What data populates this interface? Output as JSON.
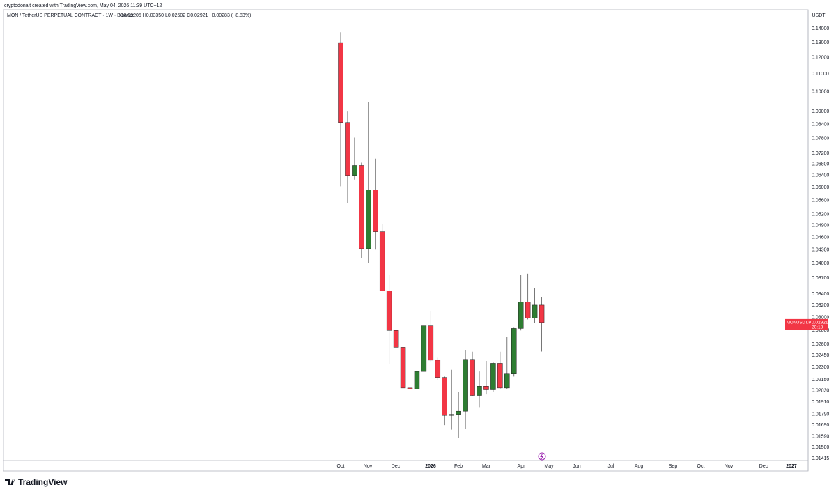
{
  "credit": "cryptodonalt created with TradingView.com, May 04, 2026 11:39 UTC+12",
  "brand": "TradingView",
  "chart_data": {
    "type": "candlestick",
    "title": "MON / TetherUS PERPETUAL CONTRACT · 1W · Binance",
    "ohlc_text": "O0.03205  H0.03350  L0.02502  C0.02921  −0.00283 (−8.83%)",
    "y_unit": "USDT",
    "log_scale": true,
    "grid": false,
    "up_color": "#2e7d32",
    "down_color": "#f23645",
    "ylim": [
      0.01399,
      0.1543
    ],
    "yticks": [
      {
        "value": 0.14,
        "label": "0.14000"
      },
      {
        "value": 0.13,
        "label": "0.13000"
      },
      {
        "value": 0.12,
        "label": "0.12000"
      },
      {
        "value": 0.11,
        "label": "0.11000"
      },
      {
        "value": 0.1,
        "label": "0.10000"
      },
      {
        "value": 0.09,
        "label": "0.09000"
      },
      {
        "value": 0.084,
        "label": "0.08400"
      },
      {
        "value": 0.078,
        "label": "0.07800"
      },
      {
        "value": 0.072,
        "label": "0.07200"
      },
      {
        "value": 0.068,
        "label": "0.06800"
      },
      {
        "value": 0.064,
        "label": "0.06400"
      },
      {
        "value": 0.06,
        "label": "0.06000"
      },
      {
        "value": 0.056,
        "label": "0.05600"
      },
      {
        "value": 0.052,
        "label": "0.05200"
      },
      {
        "value": 0.049,
        "label": "0.04900"
      },
      {
        "value": 0.046,
        "label": "0.04600"
      },
      {
        "value": 0.043,
        "label": "0.04300"
      },
      {
        "value": 0.04,
        "label": "0.04000"
      },
      {
        "value": 0.037,
        "label": "0.03700"
      },
      {
        "value": 0.034,
        "label": "0.03400"
      },
      {
        "value": 0.032,
        "label": "0.03200"
      },
      {
        "value": 0.03,
        "label": "0.03000"
      },
      {
        "value": 0.028,
        "label": "0.02800"
      },
      {
        "value": 0.026,
        "label": "0.02600"
      },
      {
        "value": 0.0245,
        "label": "0.02450"
      },
      {
        "value": 0.023,
        "label": "0.02300"
      },
      {
        "value": 0.0215,
        "label": "0.02150"
      },
      {
        "value": 0.0203,
        "label": "0.02030"
      },
      {
        "value": 0.0191,
        "label": "0.01910"
      },
      {
        "value": 0.0179,
        "label": "0.01790"
      },
      {
        "value": 0.0169,
        "label": "0.01690"
      },
      {
        "value": 0.0159,
        "label": "0.01590"
      },
      {
        "value": 0.015,
        "label": "0.01500"
      },
      {
        "value": 0.01415,
        "label": "0.01415"
      }
    ],
    "x_labels": [
      "Oct",
      "Nov",
      "Dec",
      "2026",
      "Feb",
      "Mar",
      "Apr",
      "May",
      "Jun",
      "Jul",
      "Aug",
      "Sep",
      "Oct",
      "Nov",
      "Dec",
      "2027"
    ],
    "series": {
      "open": [
        0.13,
        0.0849,
        0.064,
        0.0675,
        0.0433,
        0.0593,
        0.0474,
        0.0346,
        0.028,
        0.0256,
        0.0206,
        0.0205,
        0.0225,
        0.0287,
        0.0239,
        0.0218,
        0.0178,
        0.0179,
        0.0182,
        0.024,
        0.0198,
        0.0208,
        0.0204,
        0.0235,
        0.0206,
        0.0222,
        0.0283,
        0.0326,
        0.0299,
        0.03205
      ],
      "high": [
        0.1374,
        0.09,
        0.0783,
        0.0685,
        0.0947,
        0.07,
        0.0494,
        0.0376,
        0.0333,
        0.0297,
        0.0208,
        0.0254,
        0.0298,
        0.0311,
        0.0242,
        0.0219,
        0.0227,
        0.0202,
        0.0252,
        0.025,
        0.0225,
        0.0238,
        0.0237,
        0.025,
        0.0271,
        0.0284,
        0.0376,
        0.0379,
        0.0351,
        0.0335
      ],
      "low": [
        0.0604,
        0.0552,
        0.0626,
        0.0412,
        0.0401,
        0.0431,
        0.0345,
        0.0234,
        0.0236,
        0.0204,
        0.0173,
        0.0185,
        0.0224,
        0.0237,
        0.0215,
        0.0169,
        0.0165,
        0.0158,
        0.0166,
        0.0197,
        0.0186,
        0.0199,
        0.0202,
        0.0205,
        0.0205,
        0.0219,
        0.028,
        0.0297,
        0.0292,
        0.02502
      ],
      "close": [
        0.0849,
        0.064,
        0.0675,
        0.0433,
        0.0593,
        0.0474,
        0.0346,
        0.028,
        0.0256,
        0.0206,
        0.0205,
        0.0225,
        0.0287,
        0.0239,
        0.0218,
        0.0178,
        0.0179,
        0.0182,
        0.024,
        0.0198,
        0.0208,
        0.0204,
        0.0235,
        0.0206,
        0.0222,
        0.0283,
        0.0326,
        0.0299,
        0.03205,
        0.02921
      ]
    },
    "price_tag": {
      "symbol": "MONUSDT.P",
      "price": "0.02921",
      "countdown": "20:18"
    }
  }
}
